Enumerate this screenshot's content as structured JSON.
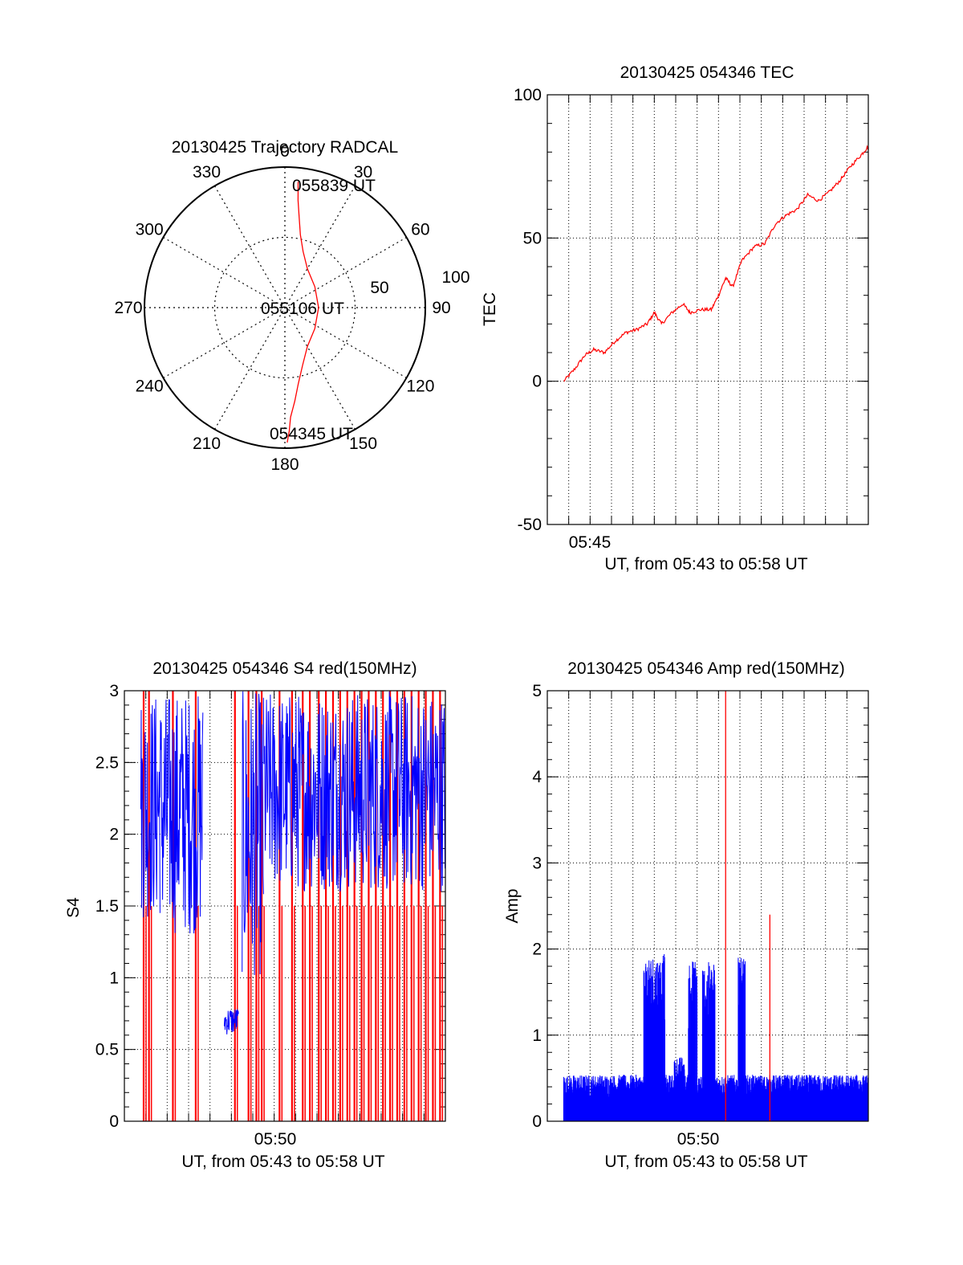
{
  "colors": {
    "trace_red": "#ff0000",
    "trace_blue": "#0000ff",
    "axis": "#000000",
    "grid": "#000000"
  },
  "chart_data": [
    {
      "id": "polar",
      "type": "scatter",
      "subtype": "polar",
      "title": "20130425 Trajectory RADCAL",
      "azimuth_labels": [
        "0",
        "30",
        "60",
        "90",
        "120",
        "150",
        "180",
        "210",
        "240",
        "270",
        "300",
        "330"
      ],
      "radial_ticks": [
        "50",
        "100"
      ],
      "radial_max": 100,
      "grid": true,
      "series": [
        {
          "color": "red",
          "points": [
            {
              "az": 6,
              "zen": 90
            },
            {
              "az": 7,
              "zen": 77
            },
            {
              "az": 9,
              "zen": 65
            },
            {
              "az": 12,
              "zen": 53
            },
            {
              "az": 18,
              "zen": 42
            },
            {
              "az": 30,
              "zen": 32
            },
            {
              "az": 55,
              "zen": 26
            },
            {
              "az": 90,
              "zen": 24
            },
            {
              "az": 125,
              "zen": 26
            },
            {
              "az": 150,
              "zen": 32
            },
            {
              "az": 163,
              "zen": 43
            },
            {
              "az": 170,
              "zen": 55
            },
            {
              "az": 174,
              "zen": 67
            },
            {
              "az": 177,
              "zen": 78
            },
            {
              "az": 178,
              "zen": 88
            },
            {
              "az": 179,
              "zen": 96
            }
          ]
        }
      ],
      "annotations": [
        "055839 UT",
        "055106 UT",
        "054345 UT"
      ]
    },
    {
      "id": "tec",
      "type": "line",
      "title": "20130425 054346 TEC",
      "ylabel": "TEC",
      "xlabel": "UT, from 05:43 to 05:58 UT",
      "x_tick_labels": [
        "05:45"
      ],
      "y_ticks": [
        "100",
        "50",
        "0",
        "-50"
      ],
      "ylim": [
        -50,
        100
      ],
      "xlim": [
        "05:43:00",
        "05:58:00"
      ],
      "grid": true,
      "series": [
        {
          "color": "red",
          "points": [
            [
              "05:43:46",
              0
            ],
            [
              "05:44:15",
              4
            ],
            [
              "05:44:45",
              9
            ],
            [
              "05:45:10",
              11
            ],
            [
              "05:45:40",
              10
            ],
            [
              "05:46:10",
              14
            ],
            [
              "05:46:40",
              17
            ],
            [
              "05:47:10",
              18
            ],
            [
              "05:47:40",
              20
            ],
            [
              "05:48:00",
              24
            ],
            [
              "05:48:20",
              20
            ],
            [
              "05:48:50",
              24
            ],
            [
              "05:49:20",
              27
            ],
            [
              "05:49:40",
              24
            ],
            [
              "05:50:10",
              25
            ],
            [
              "05:50:40",
              25
            ],
            [
              "05:51:00",
              30
            ],
            [
              "05:51:20",
              36
            ],
            [
              "05:51:40",
              33
            ],
            [
              "05:52:05",
              42
            ],
            [
              "05:52:40",
              47
            ],
            [
              "05:53:10",
              48
            ],
            [
              "05:53:40",
              55
            ],
            [
              "05:54:10",
              58
            ],
            [
              "05:54:40",
              60
            ],
            [
              "05:55:10",
              65
            ],
            [
              "05:55:40",
              63
            ],
            [
              "05:56:10",
              66
            ],
            [
              "05:56:40",
              70
            ],
            [
              "05:57:10",
              75
            ],
            [
              "05:57:40",
              79
            ],
            [
              "05:58:00",
              82
            ]
          ]
        }
      ]
    },
    {
      "id": "s4",
      "type": "line",
      "title": "20130425 054346 S4 red(150MHz)",
      "ylabel": "S4",
      "xlabel": "UT, from 05:43 to 05:58 UT",
      "x_tick_labels": [
        "05:50"
      ],
      "y_ticks": [
        "3",
        "2.5",
        "2",
        "1.5",
        "1",
        "0.5",
        "0"
      ],
      "ylim": [
        0,
        3
      ],
      "xlim": [
        "05:43:00",
        "05:58:00"
      ],
      "grid": true,
      "series": [
        {
          "color": "blue",
          "description_values": {
            "segments": [
              {
                "from": "05:43:46",
                "to": "05:44:40",
                "low": 1.4,
                "high": 3.0
              },
              {
                "from": "05:44:40",
                "to": "05:46:40",
                "low": 1.3,
                "high": 3.0
              },
              {
                "from": "05:47:40",
                "to": "05:48:20",
                "low": 0.6,
                "high": 0.8
              },
              {
                "from": "05:48:30",
                "to": "05:49:30",
                "low": 1.0,
                "high": 3.0
              },
              {
                "from": "05:49:30",
                "to": "05:58:00",
                "low": 1.6,
                "high": 3.0
              }
            ]
          }
        },
        {
          "color": "red",
          "description_values": {
            "spike_times": [
              "05:43:54",
              "05:44:09",
              "05:45:16",
              "05:46:20",
              "05:48:10",
              "05:48:48",
              "05:49:10",
              "05:49:25",
              "05:50:15",
              "05:50:50",
              "05:51:20",
              "05:51:40",
              "05:52:05",
              "05:52:25",
              "05:52:45",
              "05:53:05",
              "05:53:25",
              "05:53:45",
              "05:54:05",
              "05:54:25",
              "05:54:45",
              "05:55:05",
              "05:55:25",
              "05:55:45",
              "05:56:05",
              "05:56:25",
              "05:56:45",
              "05:57:05",
              "05:57:25",
              "05:57:45"
            ],
            "range": [
              0,
              3
            ]
          }
        }
      ]
    },
    {
      "id": "amp",
      "type": "line",
      "title": "20130425 054346 Amp red(150MHz)",
      "ylabel": "Amp",
      "xlabel": "UT, from 05:43 to 05:58 UT",
      "x_tick_labels": [
        "05:50"
      ],
      "y_ticks": [
        "5",
        "4",
        "3",
        "2",
        "1",
        "0"
      ],
      "ylim": [
        0,
        5
      ],
      "xlim": [
        "05:43:00",
        "05:58:00"
      ],
      "grid": true,
      "series": [
        {
          "color": "blue",
          "baseline_max": 0.45,
          "bursts": [
            {
              "from": "05:47:30",
              "to": "05:48:30",
              "peak": 1.95
            },
            {
              "from": "05:48:55",
              "to": "05:49:25",
              "peak": 0.75
            },
            {
              "from": "05:49:35",
              "to": "05:50:00",
              "peak": 1.9
            },
            {
              "from": "05:50:15",
              "to": "05:50:50",
              "peak": 1.85
            },
            {
              "from": "05:51:55",
              "to": "05:52:15",
              "peak": 1.9
            }
          ]
        },
        {
          "color": "red",
          "spikes": [
            {
              "time": "05:51:20",
              "value": 5.0
            },
            {
              "time": "05:53:24",
              "value": 2.4
            }
          ]
        }
      ]
    }
  ]
}
